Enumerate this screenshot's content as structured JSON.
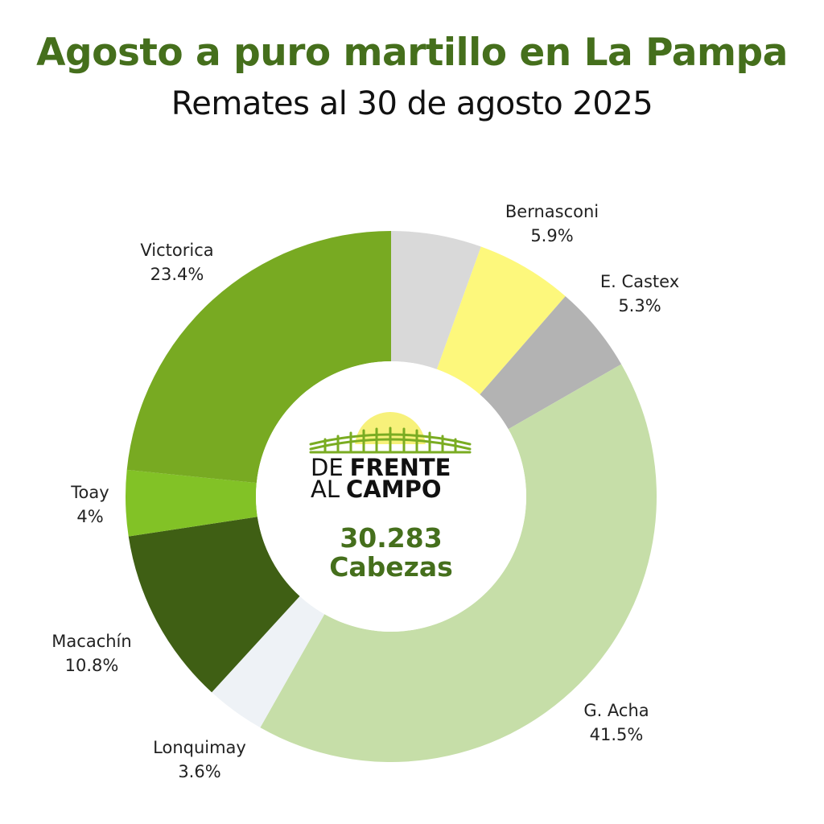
{
  "header": {
    "title": "Agosto a puro martillo en La Pampa",
    "subtitle": "Remates al 30 de agosto 2025"
  },
  "center": {
    "total_value": "30.283",
    "total_label": "Cabezas",
    "logo": {
      "line1_light": "DE",
      "line1_bold": "FRENTE",
      "line2_light": "AL",
      "line2_bold": "CAMPO"
    }
  },
  "colors": {
    "title": "#456f1c",
    "logo_sun": "#f7f17a",
    "logo_fence": "#7aac22"
  },
  "chart_data": {
    "type": "pie",
    "donut": true,
    "slices": [
      {
        "label": "",
        "value": 5.5,
        "value_text": "",
        "color": "#d9d9d9"
      },
      {
        "label": "Bernasconi",
        "value": 5.9,
        "value_text": "5.9%",
        "color": "#fdf87c"
      },
      {
        "label": "E. Castex",
        "value": 5.3,
        "value_text": "5.3%",
        "color": "#b3b3b3"
      },
      {
        "label": "G. Acha",
        "value": 41.5,
        "value_text": "41.5%",
        "color": "#c6dea8"
      },
      {
        "label": "Lonquimay",
        "value": 3.6,
        "value_text": "3.6%",
        "color": "#eef2f6"
      },
      {
        "label": "Macachín",
        "value": 10.8,
        "value_text": "10.8%",
        "color": "#3f5f14"
      },
      {
        "label": "Toay",
        "value": 4,
        "value_text": "4%",
        "color": "#82c226"
      },
      {
        "label": "Victorica",
        "value": 23.4,
        "value_text": "23.4%",
        "color": "#78aa22"
      }
    ]
  }
}
